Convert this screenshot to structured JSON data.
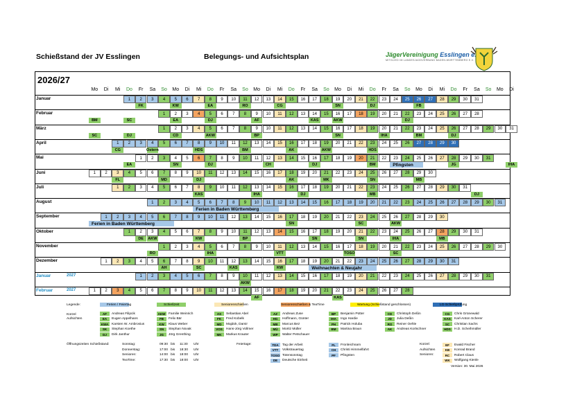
{
  "header": {
    "title_left": "Schießstand der JV Esslingen",
    "title_center": "Belegungs- und Aufsichtsplan",
    "logo_text_green": "JägerVereinigung",
    "logo_text_blue": " Esslingen e.V.",
    "logo_subtitle": "MITGLIED IM LANDESJAGDVERBAND BADEN-WÜRTTEMBERG E.V."
  },
  "season": "2026/27",
  "weekdays": [
    "Mo",
    "Di",
    "Mi",
    "Do",
    "Fr",
    "Sa",
    "So",
    "Mo",
    "Di",
    "Mi",
    "Do",
    "Fr",
    "Sa",
    "So",
    "Mo",
    "Di",
    "Mi",
    "Do",
    "Fr",
    "Sa",
    "So",
    "Mo",
    "Di",
    "Mi",
    "Do",
    "Fr",
    "Sa",
    "So",
    "Mo",
    "Di",
    "Mi",
    "Do",
    "Fr",
    "Sa",
    "So",
    "Mo",
    "Di"
  ],
  "colors": {
    "feiertag": "#a6c8e8",
    "schiesszeit": "#8fcf6a",
    "senioren": "#fbe7b5",
    "tea": "#f4a460",
    "wartung": "#ffee00",
    "luft": "#2f6fb6",
    "abbr_bg": "#8fcf6a"
  },
  "months": [
    {
      "name": "Januar",
      "start": 3,
      "days": 31,
      "abbr": [
        [
          4,
          "FK"
        ],
        [
          7,
          "KW"
        ],
        [
          10,
          "EA"
        ],
        [
          13,
          "RO"
        ],
        [
          16,
          "CG"
        ],
        [
          21,
          "SN"
        ],
        [
          24,
          "DJ"
        ],
        [
          28,
          "FB"
        ]
      ]
    },
    {
      "name": "Februar",
      "start": 6,
      "days": 28,
      "abbr": [
        [
          0,
          "BM"
        ],
        [
          3,
          "SC"
        ],
        [
          7,
          "EA"
        ],
        [
          10,
          "DJ"
        ],
        [
          14,
          "AF"
        ],
        [
          19,
          "KAS"
        ],
        [
          21,
          "AKW"
        ],
        [
          27,
          "DJ"
        ]
      ]
    },
    {
      "name": "März",
      "start": 6,
      "days": 31,
      "abbr": [
        [
          0,
          "SC"
        ],
        [
          3,
          "DJ"
        ],
        [
          7,
          "CD"
        ],
        [
          10,
          "AKW"
        ],
        [
          14,
          "BP"
        ],
        [
          21,
          "SN"
        ],
        [
          25,
          "IHA"
        ],
        [
          28,
          "BM"
        ],
        [
          31,
          "DJ"
        ]
      ]
    },
    {
      "name": "April",
      "start": 2,
      "days": 30,
      "abbr": [
        [
          2,
          "CG"
        ],
        [
          5,
          "Ostern"
        ],
        [
          9,
          "HDS"
        ],
        [
          13,
          "BM"
        ],
        [
          17,
          "AK"
        ],
        [
          20,
          "AKW"
        ],
        [
          24,
          "HDS"
        ]
      ]
    },
    {
      "name": "Mai",
      "start": 4,
      "days": 31,
      "abbr": [
        [
          3,
          "EA"
        ],
        [
          7,
          "SN"
        ],
        [
          10,
          "DJ"
        ],
        [
          15,
          "CH"
        ],
        [
          19,
          "DJ"
        ],
        [
          24,
          "BM"
        ],
        [
          26,
          "Pfingsten"
        ],
        [
          31,
          "JG"
        ],
        [
          36,
          "IHA"
        ]
      ]
    },
    {
      "name": "Juni",
      "start": 0,
      "days": 30,
      "abbr": [
        [
          2,
          "FL"
        ],
        [
          6,
          "MD"
        ],
        [
          9,
          "DJ"
        ],
        [
          17,
          "AK"
        ],
        [
          20,
          "MK"
        ],
        [
          24,
          "SN"
        ],
        [
          28,
          "MB"
        ]
      ]
    },
    {
      "name": "Juli",
      "start": 2,
      "days": 31,
      "abbr": [
        [
          9,
          "KAS"
        ],
        [
          14,
          "IHA"
        ],
        [
          18,
          "DJ"
        ],
        [
          24,
          "MB"
        ],
        [
          33,
          "DJ"
        ]
      ]
    },
    {
      "name": "August",
      "start": 5,
      "days": 31,
      "abbr": [
        [
          9,
          "Ferien in Baden Württemberg"
        ]
      ]
    },
    {
      "name": "September",
      "start": 1,
      "days": 30,
      "abbr": [
        [
          0,
          "Ferien in Baden Württemberg"
        ],
        [
          17,
          "SN"
        ],
        [
          23,
          "SC"
        ],
        [
          26,
          "AKW"
        ]
      ]
    },
    {
      "name": "Oktober",
      "start": 3,
      "days": 31,
      "abbr": [
        [
          4,
          "DE"
        ],
        [
          5,
          "AKW"
        ],
        [
          9,
          "KW"
        ],
        [
          13,
          "BP"
        ],
        [
          19,
          "SN"
        ],
        [
          23,
          "SN"
        ],
        [
          26,
          "IHA"
        ],
        [
          30,
          "MB"
        ]
      ]
    },
    {
      "name": "November",
      "start": 6,
      "days": 30,
      "abbr": [
        [
          5,
          "RO"
        ],
        [
          10,
          "IHA"
        ],
        [
          16,
          "VTT"
        ],
        [
          22,
          "TOSO"
        ],
        [
          26,
          "SC"
        ]
      ]
    },
    {
      "name": "Dezember",
      "start": 1,
      "days": 31,
      "abbr": [
        [
          6,
          "AH"
        ],
        [
          9,
          "SC"
        ],
        [
          12,
          "KAS"
        ],
        [
          16,
          "KW"
        ],
        [
          19,
          "Weihnachten & Neujahr"
        ]
      ]
    },
    {
      "name": "Januar",
      "year": "2027",
      "start": 4,
      "days": 31,
      "blue": true,
      "abbr": [
        [
          13,
          "AKW"
        ]
      ]
    },
    {
      "name": "Februar",
      "year": "2027",
      "start": 0,
      "days": 28,
      "blue": true,
      "abbr": [
        [
          14,
          "AF"
        ],
        [
          21,
          "KAS"
        ]
      ]
    }
  ],
  "legend": {
    "title": "Legende:",
    "items": [
      "Ferien / Feiertag",
      "Schießzeit",
      "Seniorenschießen",
      "Seniorenschießen & TeaTime",
      "Wartung (Schießstand geschlossen)",
      "LG-Schießprüfung"
    ],
    "kuerzel_label_1": "Kürzel",
    "kuerzel_label_2": "Aufsichten",
    "people": [
      [
        [
          "AF",
          "Andreas Filipcik"
        ],
        [
          "EA",
          "Eugen Appelhans"
        ],
        [
          "KWA",
          "Karsten W. Ambrosius"
        ],
        [
          "SK",
          "Stephan Koethe"
        ],
        [
          "DJ",
          "Dirk Janthur"
        ]
      ],
      [
        [
          "AKW",
          "Familie Weinrich"
        ],
        [
          "FB",
          "Felix Bär"
        ],
        [
          "KW",
          "Klaus Weber"
        ],
        [
          "SN",
          "Stephan Novak"
        ],
        [
          "JG",
          "Jörg Grenthing"
        ]
      ],
      [
        [
          "AS",
          "Sebastian Abel"
        ],
        [
          "FK",
          "Fred Kobelk"
        ],
        [
          "MD",
          "Majdok, Damir"
        ],
        [
          "VOS",
          "Hans-Jörg Vollmer"
        ],
        [
          "MK",
          "Markus Krauter"
        ]
      ],
      [
        [
          "AZ",
          "Andreas Zuse"
        ],
        [
          "HG",
          "Hoffmann, Günter"
        ],
        [
          "MB",
          "Marcus Bez"
        ],
        [
          "MÜ",
          "Moritz Müller"
        ],
        [
          "WP",
          "Walter Petschauer"
        ]
      ],
      [
        [
          "BP",
          "Benjamin Pütter"
        ],
        [
          "IHA",
          "Ingo Hardie"
        ],
        [
          "PH",
          "Patrick Holuba"
        ],
        [
          "BM",
          "Martina Braun"
        ]
      ],
      [
        [
          "CD",
          "Christoph Deßin"
        ],
        [
          "JD",
          "Julia Deßin"
        ],
        [
          "RO",
          "Reiner Oehle"
        ],
        [
          "AK",
          "Andreas Kortschner"
        ]
      ],
      [
        [
          "CG",
          "Chris Grünewald"
        ],
        [
          "KAS",
          "Karl-Anton Scherer"
        ],
        [
          "SC",
          "Christian Sachs"
        ],
        [
          "HDS",
          "H.D. Scheihmüller"
        ]
      ]
    ],
    "opening_label": "Öffnungszeiten Schießstand:",
    "opening": [
      [
        "Sonntag:",
        "09:30",
        "bis",
        "11:30",
        "Uhr"
      ],
      [
        "Donnerstag:",
        "17:00",
        "bis",
        "18:30",
        "Uhr"
      ],
      [
        "Senioren:",
        "14:00",
        "bis",
        "18:00",
        "Uhr"
      ],
      [
        "TeaTime:",
        "17:30",
        "bis",
        "18:00",
        "Uhr"
      ]
    ],
    "feiertage_label": "Feiertage:",
    "feiertage": [
      [
        "TDA",
        "Tag der Arbeit"
      ],
      [
        "VTT",
        "Volkstrauertag"
      ],
      [
        "TOSO",
        "Totensonntag"
      ],
      [
        "DE",
        "Deutsche Einheit"
      ]
    ],
    "feiertage2": [
      [
        "FL",
        "Fronleichnam"
      ],
      [
        "CH",
        "Christi Himmelfahrt"
      ],
      [
        "PF",
        "Pfingsten"
      ]
    ],
    "kuerzel2_label": "Kürzel:",
    "aufsichten2_label": "Aufsichten",
    "senioren2_label": "Senioren:",
    "senioren_people": [
      [
        "EF",
        "Ewald Fischer"
      ],
      [
        "KB",
        "Konrad Brand"
      ],
      [
        "RC",
        "Robert Claus"
      ],
      [
        "WK",
        "Wolfgang Kienle"
      ]
    ],
    "version": "Version: 30. Mai 2026"
  }
}
